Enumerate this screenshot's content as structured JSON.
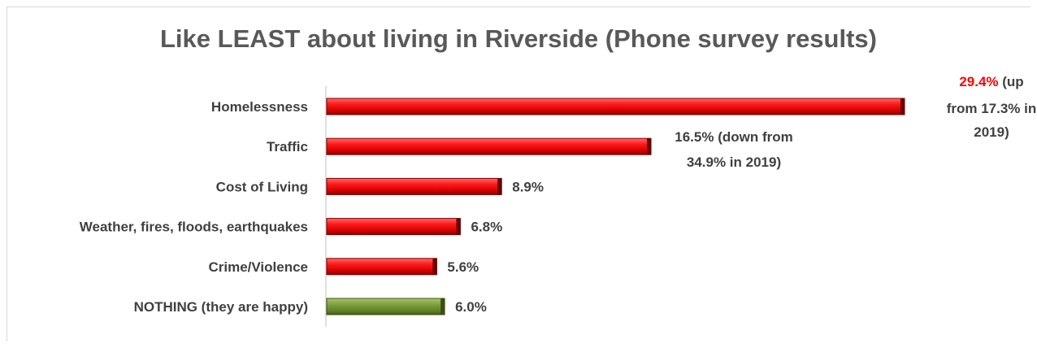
{
  "chart_data": {
    "type": "bar",
    "orientation": "horizontal",
    "title": "Like LEAST about living in Riverside (Phone survey results)",
    "xlabel": "",
    "ylabel": "",
    "xlim": [
      0,
      30
    ],
    "grid": false,
    "legend": "none",
    "categories": [
      "Homelessness",
      "Traffic",
      "Cost of Living",
      "Weather, fires, floods, earthquakes",
      "Crime/Violence",
      "NOTHING (they are happy)"
    ],
    "values": [
      29.4,
      16.5,
      8.9,
      6.8,
      5.6,
      6.0
    ],
    "bar_colors": [
      "#e00000",
      "#e00000",
      "#e00000",
      "#e00000",
      "#e00000",
      "#6f8f2e"
    ],
    "data_labels": [
      {
        "highlight": "29.4%",
        "text": " (up",
        "lines": [
          "from 17.3% in",
          "2019)"
        ]
      },
      {
        "highlight": "",
        "text": "16.5% (down from",
        "lines": [
          "34.9% in 2019)"
        ]
      },
      {
        "highlight": "",
        "text": "8.9%",
        "lines": []
      },
      {
        "highlight": "",
        "text": "6.8%",
        "lines": []
      },
      {
        "highlight": "",
        "text": "5.6%",
        "lines": []
      },
      {
        "highlight": "",
        "text": "6.0%",
        "lines": []
      }
    ],
    "highlight_color": "#ff0000"
  }
}
